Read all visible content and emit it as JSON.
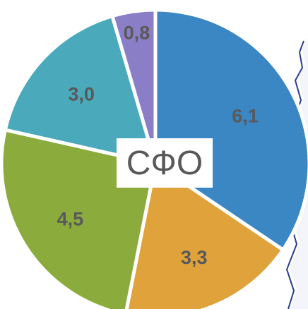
{
  "chart_data": {
    "type": "pie",
    "center_label": "СФО",
    "slices": [
      {
        "value": 6.1,
        "label": "6,1",
        "color": "#3a87c4"
      },
      {
        "value": 3.3,
        "label": "3,3",
        "color": "#e0a23a"
      },
      {
        "value": 4.5,
        "label": "4,5",
        "color": "#8cab3d"
      },
      {
        "value": 3.0,
        "label": "3,0",
        "color": "#4aa9bb"
      },
      {
        "value": 0.8,
        "label": "0,8",
        "color": "#8a7fc6"
      }
    ],
    "start": "top, clockwise",
    "background_map_edge_color": "#2a3d8f"
  }
}
